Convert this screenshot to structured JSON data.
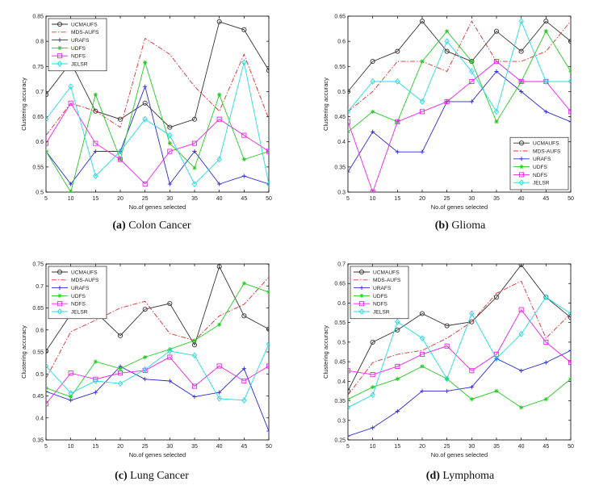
{
  "figure": {
    "series_styles": [
      {
        "name": "UCMAUFS",
        "color": "#333333",
        "marker": "circle",
        "dash": ""
      },
      {
        "name": "MDS-AUFS",
        "color": "#e03030",
        "marker": "none",
        "dash": "6,2,1.5,2"
      },
      {
        "name": "URAFS",
        "color": "#2a2ad8",
        "marker": "plus",
        "dash": ""
      },
      {
        "name": "UDFS",
        "color": "#22cc22",
        "marker": "star",
        "dash": ""
      },
      {
        "name": "NDFS",
        "color": "#ee22ee",
        "marker": "square",
        "dash": ""
      },
      {
        "name": "JELSR",
        "color": "#22dddd",
        "marker": "diamond",
        "dash": ""
      }
    ]
  },
  "chart_data": [
    {
      "id": "a",
      "type": "line",
      "caption_label": "(a)",
      "caption_text": "Colon Cancer",
      "xlabel": "No.of genes selected",
      "ylabel": "Clustering accuracy",
      "x": [
        5,
        10,
        15,
        20,
        25,
        30,
        35,
        40,
        45,
        50
      ],
      "xlim": [
        5,
        50
      ],
      "ylim": [
        0.5,
        0.85
      ],
      "yticks": [
        0.5,
        0.55,
        0.6,
        0.65,
        0.7,
        0.75,
        0.8,
        0.85
      ],
      "ytick_labels": [
        "0.5",
        "0.55",
        "0.6",
        "0.65",
        "0.7",
        "0.75",
        "0.8",
        "0.85"
      ],
      "legend_position": "top-left",
      "series": [
        {
          "name": "UCMAUFS",
          "values": [
            0.694,
            0.758,
            0.661,
            0.645,
            0.677,
            0.629,
            0.645,
            0.839,
            0.823,
            0.742
          ]
        },
        {
          "name": "MDS-AUFS",
          "values": [
            0.613,
            0.677,
            0.661,
            0.629,
            0.806,
            0.774,
            0.71,
            0.661,
            0.774,
            0.645
          ]
        },
        {
          "name": "URAFS",
          "values": [
            0.581,
            0.516,
            0.581,
            0.581,
            0.71,
            0.516,
            0.581,
            0.516,
            0.532,
            0.516
          ]
        },
        {
          "name": "UDFS",
          "values": [
            0.581,
            0.5,
            0.694,
            0.565,
            0.758,
            0.597,
            0.548,
            0.694,
            0.565,
            0.581
          ]
        },
        {
          "name": "NDFS",
          "values": [
            0.597,
            0.677,
            0.597,
            0.565,
            0.516,
            0.581,
            0.597,
            0.645,
            0.613,
            0.581
          ]
        },
        {
          "name": "JELSR",
          "values": [
            0.645,
            0.71,
            0.532,
            0.581,
            0.645,
            0.613,
            0.516,
            0.565,
            0.758,
            0.516
          ]
        }
      ]
    },
    {
      "id": "b",
      "type": "line",
      "caption_label": "(b)",
      "caption_text": "Glioma",
      "xlabel": "No.of genes selected",
      "ylabel": "Clustering accuracy",
      "x": [
        5,
        10,
        15,
        20,
        25,
        30,
        35,
        40,
        45,
        50
      ],
      "xlim": [
        5,
        50
      ],
      "ylim": [
        0.3,
        0.65
      ],
      "yticks": [
        0.3,
        0.35,
        0.4,
        0.45,
        0.5,
        0.55,
        0.6,
        0.65
      ],
      "ytick_labels": [
        "0.3",
        "0.35",
        "0.4",
        "0.45",
        "0.5",
        "0.55",
        "0.6",
        "0.65"
      ],
      "legend_position": "bottom-right",
      "series": [
        {
          "name": "UCMAUFS",
          "values": [
            0.5,
            0.56,
            0.58,
            0.64,
            0.58,
            0.56,
            0.62,
            0.58,
            0.64,
            0.6
          ]
        },
        {
          "name": "MDS-AUFS",
          "values": [
            0.46,
            0.5,
            0.56,
            0.56,
            0.54,
            0.64,
            0.56,
            0.56,
            0.58,
            0.64
          ]
        },
        {
          "name": "URAFS",
          "values": [
            0.34,
            0.42,
            0.38,
            0.38,
            0.48,
            0.48,
            0.54,
            0.5,
            0.46,
            0.44
          ]
        },
        {
          "name": "UDFS",
          "values": [
            0.42,
            0.46,
            0.44,
            0.56,
            0.62,
            0.56,
            0.44,
            0.52,
            0.62,
            0.54
          ]
        },
        {
          "name": "NDFS",
          "values": [
            0.44,
            0.3,
            0.44,
            0.46,
            0.48,
            0.52,
            0.56,
            0.52,
            0.52,
            0.46
          ]
        },
        {
          "name": "JELSR",
          "values": [
            0.46,
            0.52,
            0.52,
            0.48,
            0.6,
            0.54,
            0.46,
            0.64,
            0.52,
            0.52
          ]
        }
      ]
    },
    {
      "id": "c",
      "type": "line",
      "caption_label": "(c)",
      "caption_text": "Lung Cancer",
      "xlabel": "No.of genes selected",
      "ylabel": "Clustering accuracy",
      "x": [
        5,
        10,
        15,
        20,
        25,
        30,
        35,
        40,
        45,
        50
      ],
      "xlim": [
        5,
        50
      ],
      "ylim": [
        0.35,
        0.75
      ],
      "yticks": [
        0.35,
        0.4,
        0.45,
        0.5,
        0.55,
        0.6,
        0.65,
        0.7,
        0.75
      ],
      "ytick_labels": [
        "0.35",
        "0.4",
        "0.45",
        "0.5",
        "0.55",
        "0.6",
        "0.65",
        "0.7",
        "0.75"
      ],
      "legend_position": "top-left",
      "series": [
        {
          "name": "UCMAUFS",
          "values": [
            0.552,
            0.636,
            0.641,
            0.587,
            0.647,
            0.66,
            0.566,
            0.744,
            0.632,
            0.602
          ]
        },
        {
          "name": "MDS-AUFS",
          "values": [
            0.49,
            0.596,
            0.622,
            0.65,
            0.665,
            0.592,
            0.576,
            0.632,
            0.658,
            0.72
          ]
        },
        {
          "name": "URAFS",
          "values": [
            0.46,
            0.44,
            0.458,
            0.517,
            0.488,
            0.484,
            0.448,
            0.458,
            0.512,
            0.37
          ]
        },
        {
          "name": "UDFS",
          "values": [
            0.468,
            0.448,
            0.528,
            0.512,
            0.538,
            0.556,
            0.576,
            0.612,
            0.706,
            0.686
          ]
        },
        {
          "name": "NDFS",
          "values": [
            0.432,
            0.502,
            0.488,
            0.502,
            0.508,
            0.538,
            0.472,
            0.518,
            0.484,
            0.518
          ]
        },
        {
          "name": "JELSR",
          "values": [
            0.518,
            0.456,
            0.484,
            0.478,
            0.51,
            0.552,
            0.542,
            0.444,
            0.44,
            0.568
          ]
        }
      ]
    },
    {
      "id": "d",
      "type": "line",
      "caption_label": "(d)",
      "caption_text": "Lymphoma",
      "xlabel": "No.of genes selected",
      "ylabel": "Clustering accuracy",
      "x": [
        5,
        10,
        15,
        20,
        25,
        30,
        35,
        40,
        45,
        50
      ],
      "xlim": [
        5,
        50
      ],
      "ylim": [
        0.25,
        0.7
      ],
      "yticks": [
        0.25,
        0.3,
        0.35,
        0.4,
        0.45,
        0.5,
        0.55,
        0.6,
        0.65,
        0.7
      ],
      "ytick_labels": [
        "0.25",
        "0.3",
        "0.35",
        "0.4",
        "0.45",
        "0.5",
        "0.55",
        "0.6",
        "0.65",
        "0.7"
      ],
      "legend_position": "top-left",
      "series": [
        {
          "name": "UCMAUFS",
          "values": [
            0.375,
            0.5,
            0.531,
            0.573,
            0.542,
            0.552,
            0.615,
            0.698,
            0.615,
            0.563
          ]
        },
        {
          "name": "MDS-AUFS",
          "values": [
            0.365,
            0.448,
            0.469,
            0.479,
            0.51,
            0.552,
            0.625,
            0.656,
            0.51,
            0.573
          ]
        },
        {
          "name": "URAFS",
          "values": [
            0.26,
            0.281,
            0.323,
            0.375,
            0.375,
            0.385,
            0.458,
            0.427,
            0.448,
            0.479
          ]
        },
        {
          "name": "UDFS",
          "values": [
            0.354,
            0.385,
            0.406,
            0.438,
            0.406,
            0.354,
            0.375,
            0.333,
            0.354,
            0.406
          ]
        },
        {
          "name": "NDFS",
          "values": [
            0.427,
            0.417,
            0.438,
            0.469,
            0.49,
            0.427,
            0.469,
            0.583,
            0.5,
            0.448
          ]
        },
        {
          "name": "JELSR",
          "values": [
            0.333,
            0.365,
            0.552,
            0.51,
            0.406,
            0.573,
            0.458,
            0.521,
            0.615,
            0.573
          ]
        }
      ]
    }
  ]
}
